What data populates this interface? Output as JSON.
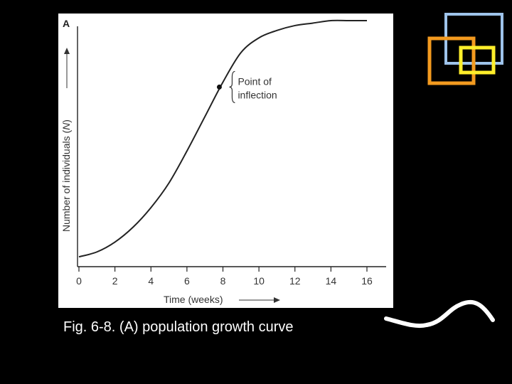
{
  "caption": "Fig. 6-8. (A) population growth curve",
  "colors": {
    "background": "#000000",
    "panel": "#ffffff",
    "ink": "#222222",
    "deco_blue": "#9ec3ea",
    "deco_orange": "#f39a1f",
    "deco_yellow": "#ffee2a",
    "deco_wave": "#ffffff"
  },
  "chart_data": {
    "type": "line",
    "panel_label": "A",
    "title": "",
    "xlabel": "Time (weeks)",
    "ylabel_prefix": "Number of individuals (",
    "ylabel_symbol": "N",
    "ylabel_suffix": ")",
    "x_ticks": [
      0,
      2,
      4,
      6,
      8,
      10,
      12,
      14,
      16
    ],
    "xlim": [
      0,
      17.2
    ],
    "y_ticks_shown": false,
    "grid": false,
    "series": [
      {
        "x": [
          0,
          1,
          2,
          3,
          4,
          5,
          6,
          7,
          8,
          9,
          10,
          11,
          12,
          13,
          14,
          15,
          16
        ],
        "y": [
          0.04,
          0.06,
          0.1,
          0.16,
          0.24,
          0.34,
          0.47,
          0.61,
          0.75,
          0.87,
          0.93,
          0.96,
          0.98,
          0.99,
          1.0,
          1.0,
          1.0
        ]
      }
    ],
    "annotation": {
      "text_line1": "Point of",
      "text_line2": "inflection",
      "x": 7.8,
      "y": 0.73
    }
  }
}
